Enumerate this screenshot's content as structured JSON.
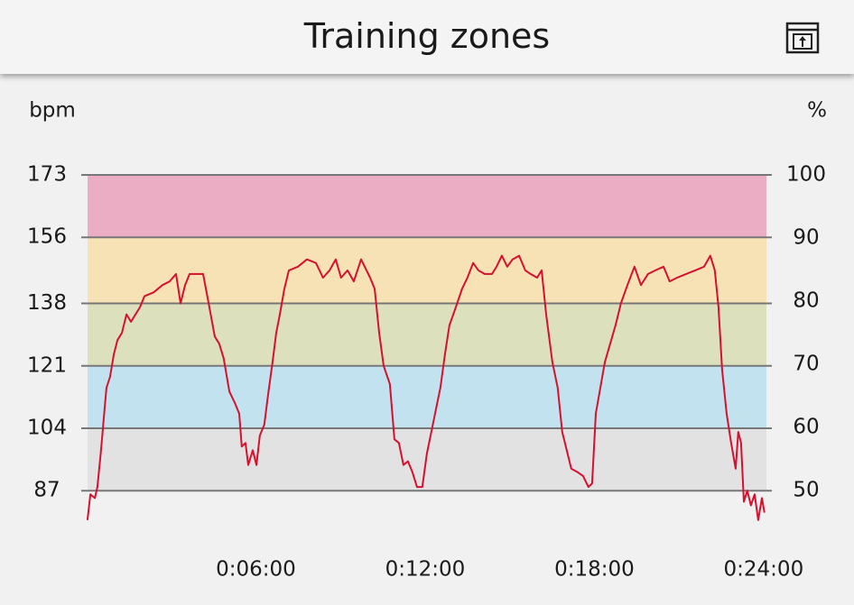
{
  "header": {
    "title": "Training zones"
  },
  "chart_data": {
    "type": "line",
    "ylabel": "bpm",
    "y2label": "%",
    "ylim": [
      76,
      173
    ],
    "yticks": [
      173,
      156,
      138,
      121,
      104,
      87
    ],
    "y2lim": [
      43.6,
      100
    ],
    "y2ticks": [
      100,
      90,
      80,
      70,
      60,
      50
    ],
    "xlim": [
      0,
      24.1
    ],
    "xticks": [
      {
        "value": 6,
        "label": "0:06:00"
      },
      {
        "value": 12,
        "label": "0:12:00"
      },
      {
        "value": 18,
        "label": "0:18:00"
      },
      {
        "value": 24,
        "label": "0:24:00"
      }
    ],
    "grid": true,
    "zone_colors": [
      "#ebadc4",
      "#f6e2b5",
      "#dce0bd",
      "#c2e2f0",
      "#e2e2e2"
    ],
    "series": [
      {
        "color": "#d4112e",
        "x": [
          0.03,
          0.13,
          0.29,
          0.38,
          0.51,
          0.7,
          0.83,
          0.96,
          1.09,
          1.25,
          1.41,
          1.57,
          1.73,
          1.89,
          2.05,
          2.37,
          2.69,
          2.94,
          3.17,
          3.33,
          3.49,
          3.65,
          4.13,
          4.35,
          4.54,
          4.7,
          4.86,
          5.06,
          5.25,
          5.41,
          5.5,
          5.63,
          5.73,
          5.89,
          6.02,
          6.14,
          6.3,
          6.43,
          6.59,
          6.72,
          6.85,
          7.01,
          7.17,
          7.49,
          7.81,
          8.13,
          8.38,
          8.61,
          8.83,
          9.02,
          9.25,
          9.47,
          9.73,
          10.05,
          10.21,
          10.37,
          10.53,
          10.75,
          10.91,
          11.07,
          11.23,
          11.39,
          11.55,
          11.71,
          11.9,
          12.06,
          12.22,
          12.38,
          12.54,
          12.7,
          12.86,
          13.09,
          13.31,
          13.5,
          13.7,
          13.89,
          14.11,
          14.37,
          14.53,
          14.72,
          14.91,
          15.1,
          15.33,
          15.55,
          15.74,
          15.97,
          16.13,
          16.29,
          16.51,
          16.7,
          16.86,
          17.02,
          17.18,
          17.41,
          17.6,
          17.79,
          17.92,
          18.05,
          18.21,
          18.37,
          18.56,
          18.75,
          18.94,
          19.17,
          19.42,
          19.65,
          19.9,
          20.16,
          20.45,
          20.67,
          20.93,
          21.25,
          21.57,
          21.89,
          22.11,
          22.27,
          22.4,
          22.53,
          22.69,
          22.85,
          23.01,
          23.1,
          23.2,
          23.3,
          23.42,
          23.55,
          23.68,
          23.81,
          23.94,
          24.03
        ],
        "values": [
          79,
          86,
          85,
          88,
          98,
          115,
          118,
          124,
          128,
          130,
          135,
          133,
          135,
          137,
          140,
          141,
          143,
          144,
          146,
          138,
          143,
          146,
          146,
          137,
          129,
          127,
          123,
          114,
          111,
          108,
          99,
          100,
          94,
          98,
          94,
          102,
          105,
          113,
          122,
          130,
          135,
          142,
          147,
          148,
          150,
          149,
          145,
          147,
          150,
          145,
          147,
          144,
          150,
          145,
          142,
          130,
          121,
          116,
          101,
          100,
          94,
          95,
          92,
          88,
          88,
          97,
          103,
          109,
          115,
          124,
          132,
          137,
          142,
          145,
          149,
          147,
          146,
          146,
          148,
          151,
          148,
          150,
          151,
          147,
          146,
          145,
          147,
          135,
          122,
          115,
          103,
          98,
          93,
          92,
          91,
          88,
          89,
          108,
          115,
          122,
          127,
          132,
          138,
          143,
          148,
          143,
          146,
          147,
          148,
          144,
          145,
          146,
          147,
          148,
          151,
          147,
          137,
          120,
          108,
          100,
          93,
          103,
          100,
          84,
          87,
          83,
          86,
          79,
          85,
          81
        ]
      }
    ]
  }
}
